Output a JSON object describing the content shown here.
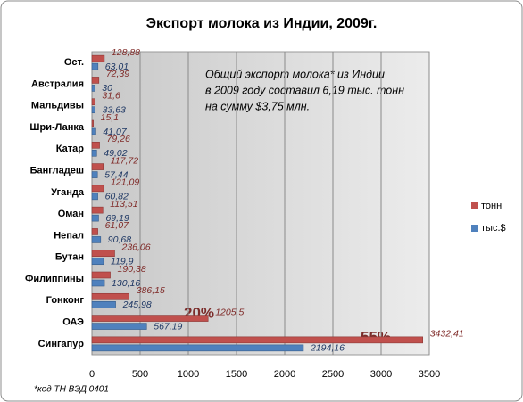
{
  "chart_data": {
    "type": "bar",
    "orientation": "horizontal",
    "title": "Экспорт молока из Индии, 2009г.",
    "categories": [
      "Ост.",
      "Австралия",
      "Мальдивы",
      "Шри-Ланка",
      "Катар",
      "Бангладеш",
      "Уганда",
      "Оман",
      "Непал",
      "Бутан",
      "Филиппины",
      "Гонконг",
      "ОАЭ",
      "Сингапур"
    ],
    "series": [
      {
        "name": "тонн",
        "color": "#c0504d",
        "values": [
          128.88,
          72.39,
          31.6,
          15.1,
          79.26,
          117.72,
          121.09,
          113.51,
          61.07,
          236.06,
          190.38,
          386.15,
          1205.5,
          3432.41
        ],
        "value_labels": [
          "128,88",
          "72,39",
          "31,6",
          "15,1",
          "79,26",
          "117,72",
          "121,09",
          "113,51",
          "61,07",
          "236,06",
          "190,38",
          "386,15",
          "1205,5",
          "3432,41"
        ]
      },
      {
        "name": "тыс.$",
        "color": "#4f81bd",
        "values": [
          63.01,
          30,
          33.63,
          41.07,
          49.02,
          57.44,
          60.82,
          69.19,
          90.68,
          119.9,
          130.16,
          245.98,
          567.19,
          2194.16
        ],
        "value_labels": [
          "63,01",
          "30",
          "33,63",
          "41,07",
          "49,02",
          "57,44",
          "60,82",
          "69,19",
          "90,68",
          "119,9",
          "130,16",
          "245,98",
          "567,19",
          "2194,16"
        ]
      }
    ],
    "xlim": [
      0,
      3500
    ],
    "xticks": [
      0,
      500,
      1000,
      1500,
      2000,
      2500,
      3000,
      3500
    ],
    "grid": true,
    "legend": "right",
    "note": [
      "Общий экспорт молока* из Индии",
      "в 2009 году составил 6,19 тыс. тонн",
      "на сумму $3,75 млн."
    ],
    "share_labels": [
      "20%",
      "55%"
    ],
    "footnote": "*код ТН ВЭД 0401"
  }
}
